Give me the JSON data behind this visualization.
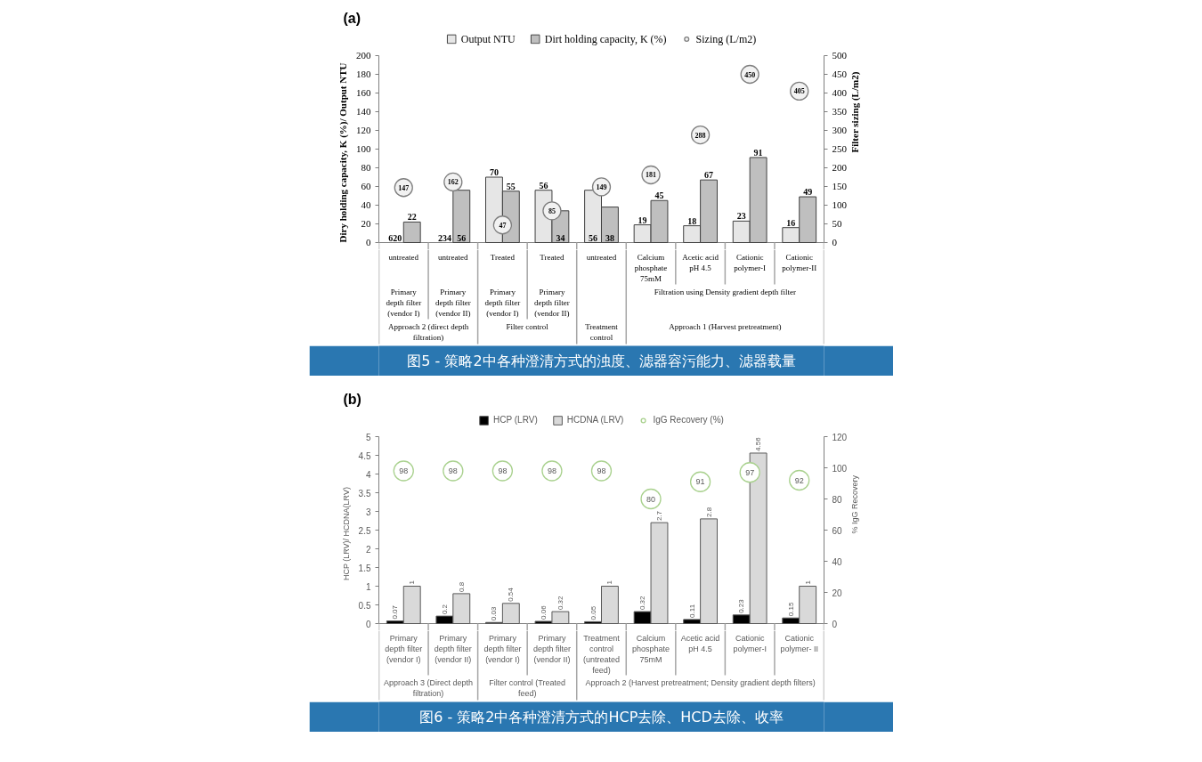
{
  "chart_data": [
    {
      "type": "bar",
      "title": "(a)",
      "ylabel": "Diry holding capacity, K (%)/ Output NTU",
      "y2label": "Filter sizing (L/m2)",
      "categories": [
        [
          "untreated",
          "Primary depth filter (vendor I)",
          "Approach 2 (direct depth filtration)"
        ],
        [
          "untreated",
          "Primary depth filter (vendor II)",
          null
        ],
        [
          "Treated",
          "Primary depth filter (vendor I)",
          "Filter control"
        ],
        [
          "Treated",
          "Primary depth filter (vendor II)",
          null
        ],
        [
          "untreated",
          null,
          "Treatment control"
        ],
        [
          "Calcium phosphate 75mM",
          "Filtration using Density gradient depth filter",
          "Approach 1 (Harvest pretreatment)"
        ],
        [
          "Acetic acid pH 4.5",
          null,
          null
        ],
        [
          "Cationic polymer-I",
          null,
          null
        ],
        [
          "Cationic polymer-II",
          null,
          null
        ]
      ],
      "series": [
        {
          "name": "Output NTU",
          "color": "#e6e6e6",
          "values": [
            null,
            null,
            70,
            56,
            56,
            19,
            18,
            23,
            16
          ],
          "value_labels": [
            "620",
            "234",
            "70",
            "56",
            "56",
            "19",
            "18",
            "23",
            "16"
          ]
        },
        {
          "name": "Dirt holding capacity, K (%)",
          "color": "#bfbfbf",
          "values": [
            22,
            56,
            55,
            34,
            38,
            45,
            67,
            91,
            49
          ]
        },
        {
          "name": "Sizing (L/m2)",
          "type": "scatter",
          "axis": "y2",
          "color": "#7f7f7f",
          "values": [
            147,
            162,
            47,
            85,
            149,
            181,
            288,
            450,
            405
          ]
        }
      ],
      "ylim": [
        0,
        200
      ],
      "yticks": [
        0,
        20,
        40,
        60,
        80,
        100,
        120,
        140,
        160,
        180,
        200
      ],
      "y2lim": [
        0,
        500
      ],
      "y2ticks": [
        0,
        50,
        100,
        150,
        200,
        250,
        300,
        350,
        400,
        450,
        500
      ],
      "data_labels": true,
      "legend": "top",
      "marker": "circle",
      "annotations": [
        "图5 - 策略2中各种澄清方式的浊度、滤器容污能力、滤器载量"
      ]
    },
    {
      "type": "bar",
      "title": "(b)",
      "ylabel": "HCP (LRV)/ HCDNA(LRV)",
      "y2label": "% IgG Recovery",
      "categories": [
        [
          "Primary depth filter (vendor I)",
          "Approach 3 (Direct depth filtration)"
        ],
        [
          "Primary depth filter (vendor II)",
          null
        ],
        [
          "Primary depth filter (vendor I)",
          "Filter control (Treated feed)"
        ],
        [
          "Primary depth filter (vendor II)",
          null
        ],
        [
          "Treatment control (untreated feed)",
          "Approach 2 (Harvest pretreatment; Density gradient depth filters)"
        ],
        [
          "Calcium phosphate 75mM",
          null
        ],
        [
          "Acetic acid pH 4.5",
          null
        ],
        [
          "Cationic polymer-I",
          null
        ],
        [
          "Cationic polymer- II",
          null
        ]
      ],
      "series": [
        {
          "name": "HCP (LRV)",
          "color": "#000000",
          "values": [
            0.07,
            0.2,
            0.03,
            0.06,
            0.05,
            0.32,
            0.11,
            0.23,
            0.15
          ]
        },
        {
          "name": "HCDNA (LRV)",
          "color": "#d9d9d9",
          "values": [
            1,
            0.8,
            0.54,
            0.32,
            1,
            2.7,
            2.8,
            4.56,
            1
          ]
        },
        {
          "name": "IgG Recovery (%)",
          "type": "scatter",
          "axis": "y2",
          "color": "#a9d18e",
          "values": [
            98,
            98,
            98,
            98,
            98,
            80,
            91,
            97,
            92
          ]
        }
      ],
      "ylim": [
        0,
        5
      ],
      "yticks": [
        0,
        0.5,
        1,
        1.5,
        2,
        2.5,
        3,
        3.5,
        4,
        4.5,
        5
      ],
      "y2lim": [
        0,
        120
      ],
      "y2ticks": [
        0,
        20,
        40,
        60,
        80,
        100,
        120
      ],
      "data_labels": true,
      "legend": "top",
      "marker": "circle",
      "annotations": [
        "图6 - 策略2中各种澄清方式的HCP去除、HCD去除、收率"
      ]
    }
  ]
}
